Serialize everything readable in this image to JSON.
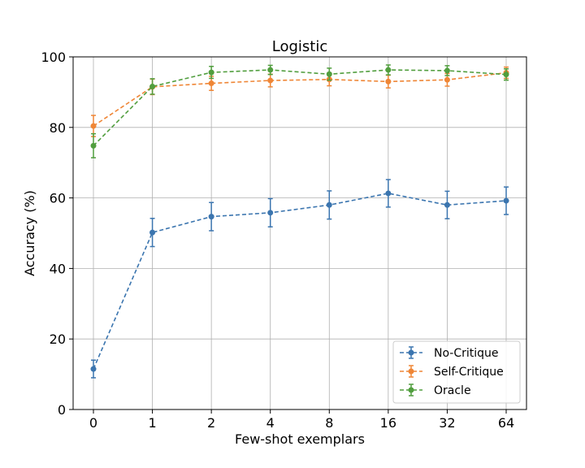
{
  "chart_data": {
    "type": "line",
    "title": "Logistic",
    "xlabel": "Few-shot exemplars",
    "ylabel": "Accuracy (%)",
    "categories": [
      "0",
      "1",
      "2",
      "4",
      "8",
      "16",
      "32",
      "64"
    ],
    "ylim": [
      0,
      100
    ],
    "yticks": [
      0,
      20,
      40,
      60,
      80,
      100
    ],
    "grid": true,
    "legend_position": "lower-right",
    "series": [
      {
        "name": "No-Critique",
        "color": "#3b75af",
        "values": [
          11.5,
          50.2,
          54.7,
          55.8,
          58.0,
          61.3,
          58.0,
          59.2
        ],
        "errors": [
          2.5,
          4.0,
          4.0,
          4.0,
          4.0,
          3.9,
          3.9,
          3.9
        ]
      },
      {
        "name": "Self-Critique",
        "color": "#ef8636",
        "values": [
          80.4,
          91.5,
          92.5,
          93.3,
          93.6,
          93.0,
          93.5,
          95.5
        ],
        "errors": [
          3.0,
          2.2,
          2.0,
          1.8,
          1.8,
          1.8,
          1.8,
          1.6
        ]
      },
      {
        "name": "Oracle",
        "color": "#519e3e",
        "values": [
          74.8,
          91.6,
          95.6,
          96.3,
          95.1,
          96.3,
          96.1,
          95.0
        ],
        "errors": [
          3.4,
          2.2,
          1.7,
          1.3,
          1.7,
          1.4,
          1.4,
          1.6
        ]
      }
    ]
  }
}
